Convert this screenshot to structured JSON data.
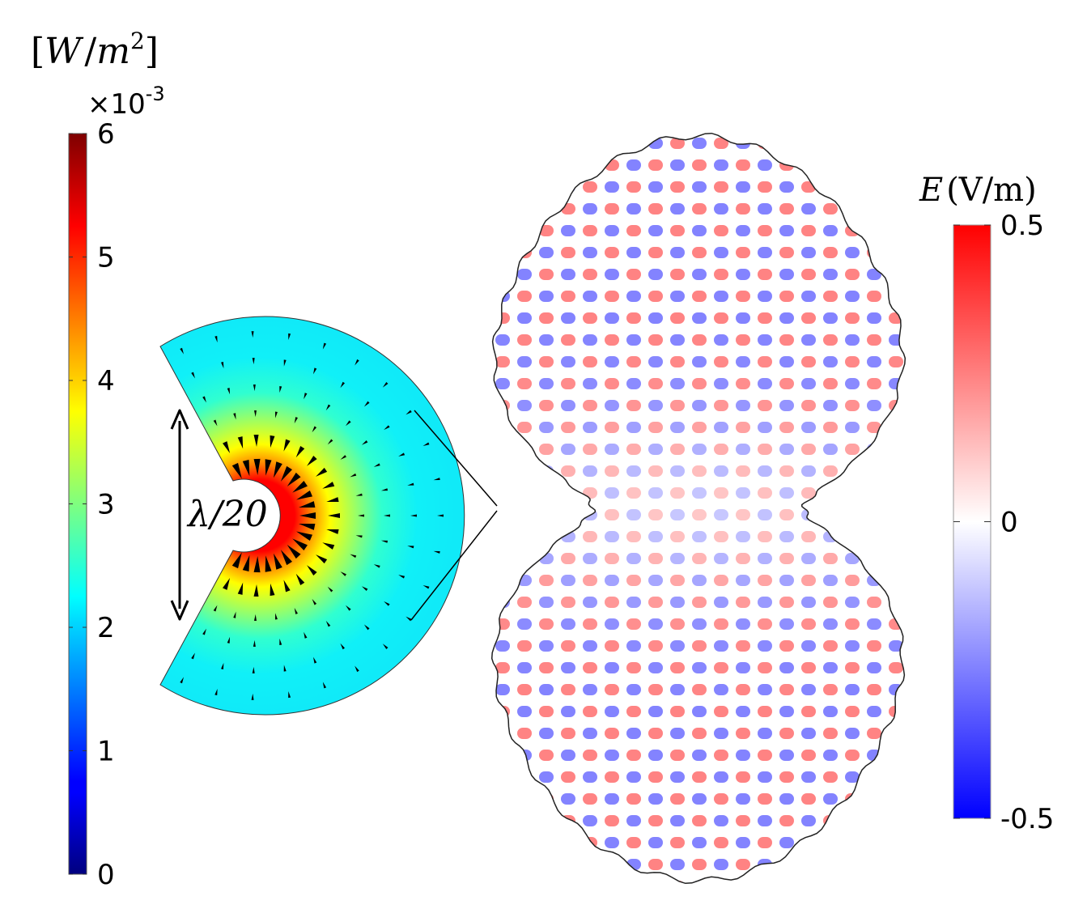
{
  "left_colorbar": {
    "unit_label": "[W/m²]",
    "unit_parts": {
      "open": "[",
      "w": "W",
      "slash": "/",
      "m": "m",
      "sup": "2",
      "close": "]"
    },
    "multiplier": "×10",
    "multiplier_exp": "-3",
    "ticks": [
      "0",
      "1",
      "2",
      "3",
      "4",
      "5",
      "6"
    ],
    "range": [
      0,
      6
    ],
    "colormap": "jet"
  },
  "zoom_inset": {
    "dimension_label": "λ/20",
    "background_level": 2.2,
    "peak_level": 5.4
  },
  "right_colorbar": {
    "title_symbol": "E",
    "title_unit": "(V/m)",
    "ticks": [
      "0.5",
      "0",
      "-0.5"
    ],
    "range": [
      -0.5,
      0.5
    ],
    "colormap": "blue-white-red",
    "colors": {
      "max": "#ff0000",
      "mid": "#ffffff",
      "min": "#0000ff"
    }
  }
}
